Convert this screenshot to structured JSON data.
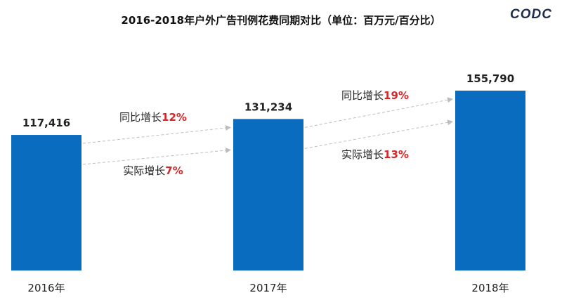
{
  "logo": "CODC",
  "chart_data": {
    "type": "bar",
    "title": "2016-2018年户外广告刊例花费同期对比（单位：百万元/百分比）",
    "categories": [
      "2016年",
      "2017年",
      "2018年"
    ],
    "values": [
      117416,
      131234,
      155790
    ],
    "value_labels": [
      "117,416",
      "131,234",
      "155,790"
    ],
    "bar_color": "#0a6cbf",
    "ylim": [
      0,
      160000
    ],
    "grid": false,
    "legend": "none",
    "annotations": [
      {
        "from": "2016年",
        "to": "2017年",
        "prefix": "同比增长",
        "pct": "12%",
        "line": "upper"
      },
      {
        "from": "2016年",
        "to": "2017年",
        "prefix": "实际增长",
        "pct": "7%",
        "line": "lower"
      },
      {
        "from": "2017年",
        "to": "2018年",
        "prefix": "同比增长",
        "pct": "19%",
        "line": "upper"
      },
      {
        "from": "2017年",
        "to": "2018年",
        "prefix": "实际增长",
        "pct": "13%",
        "line": "lower"
      }
    ],
    "annotation_colors": {
      "text": "#222222",
      "pct": "#d62728",
      "arrow": "#bdbdbd"
    }
  }
}
